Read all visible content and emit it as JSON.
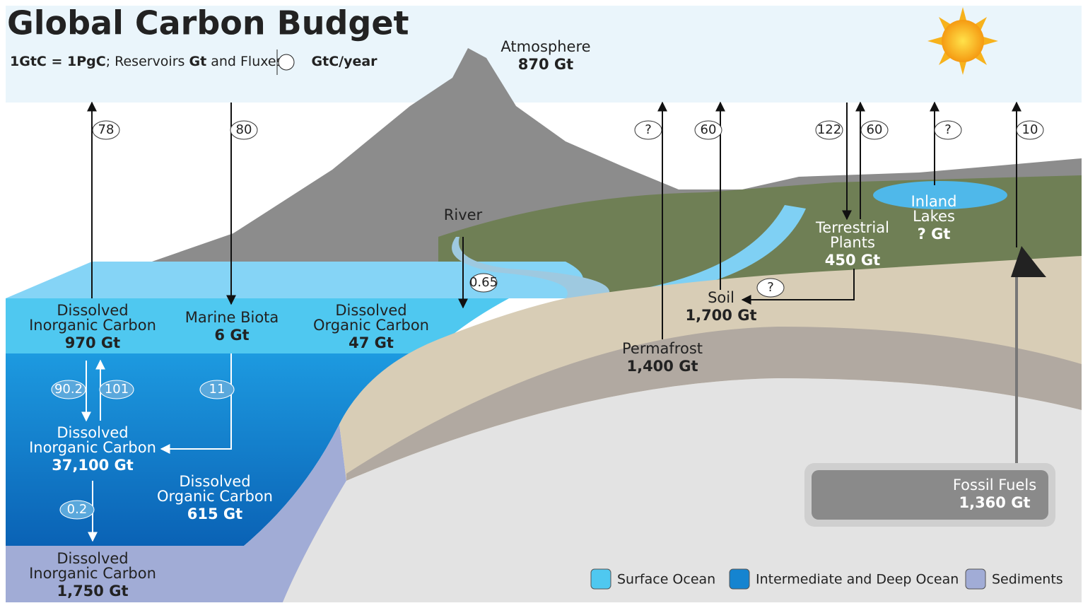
{
  "title": "Global Carbon Budget",
  "subtitle": {
    "equivalence": "1GtC = 1PgC",
    "reservoirs": "; Reservoirs",
    "reservoir_unit": "Gt",
    "fluxes": "and Fluxes",
    "flux_unit": "GtC/year"
  },
  "reservoirs": [
    {
      "label": [
        "Atmosphere"
      ],
      "amount": "870 Gt"
    },
    {
      "label": [
        "Dissolved",
        "Inorganic Carbon"
      ],
      "amount": "970 Gt"
    },
    {
      "label": [
        "Marine Biota"
      ],
      "amount": "6 Gt"
    },
    {
      "label": [
        "Dissolved",
        "Organic Carbon"
      ],
      "amount": "47 Gt"
    },
    {
      "label": [
        "Dissolved",
        "Inorganic Carbon"
      ],
      "amount": "37,100 Gt"
    },
    {
      "label": [
        "Dissolved",
        "Organic Carbon"
      ],
      "amount": "615 Gt"
    },
    {
      "label": [
        "Dissolved",
        "Inorganic Carbon"
      ],
      "amount": "1,750 Gt"
    },
    {
      "label": [
        "Permafrost"
      ],
      "amount": "1,400 Gt"
    },
    {
      "label": [
        "Soil"
      ],
      "amount": "1,700 Gt"
    },
    {
      "label": [
        "Terrestrial",
        "Plants"
      ],
      "amount": "450 Gt"
    },
    {
      "label": [
        "Inland",
        "Lakes"
      ],
      "amount": "? Gt"
    },
    {
      "label": [
        "Fossil Fuels"
      ],
      "amount": "1,360 Gt"
    }
  ],
  "labels": {
    "river": "River"
  },
  "fluxes": [
    78,
    80,
    "?",
    60,
    122,
    60,
    "?",
    10,
    0.65,
    "?",
    90.2,
    101,
    11,
    0.2
  ],
  "legend": [
    "Surface Ocean",
    "Intermediate and Deep Ocean",
    "Sediments"
  ]
}
